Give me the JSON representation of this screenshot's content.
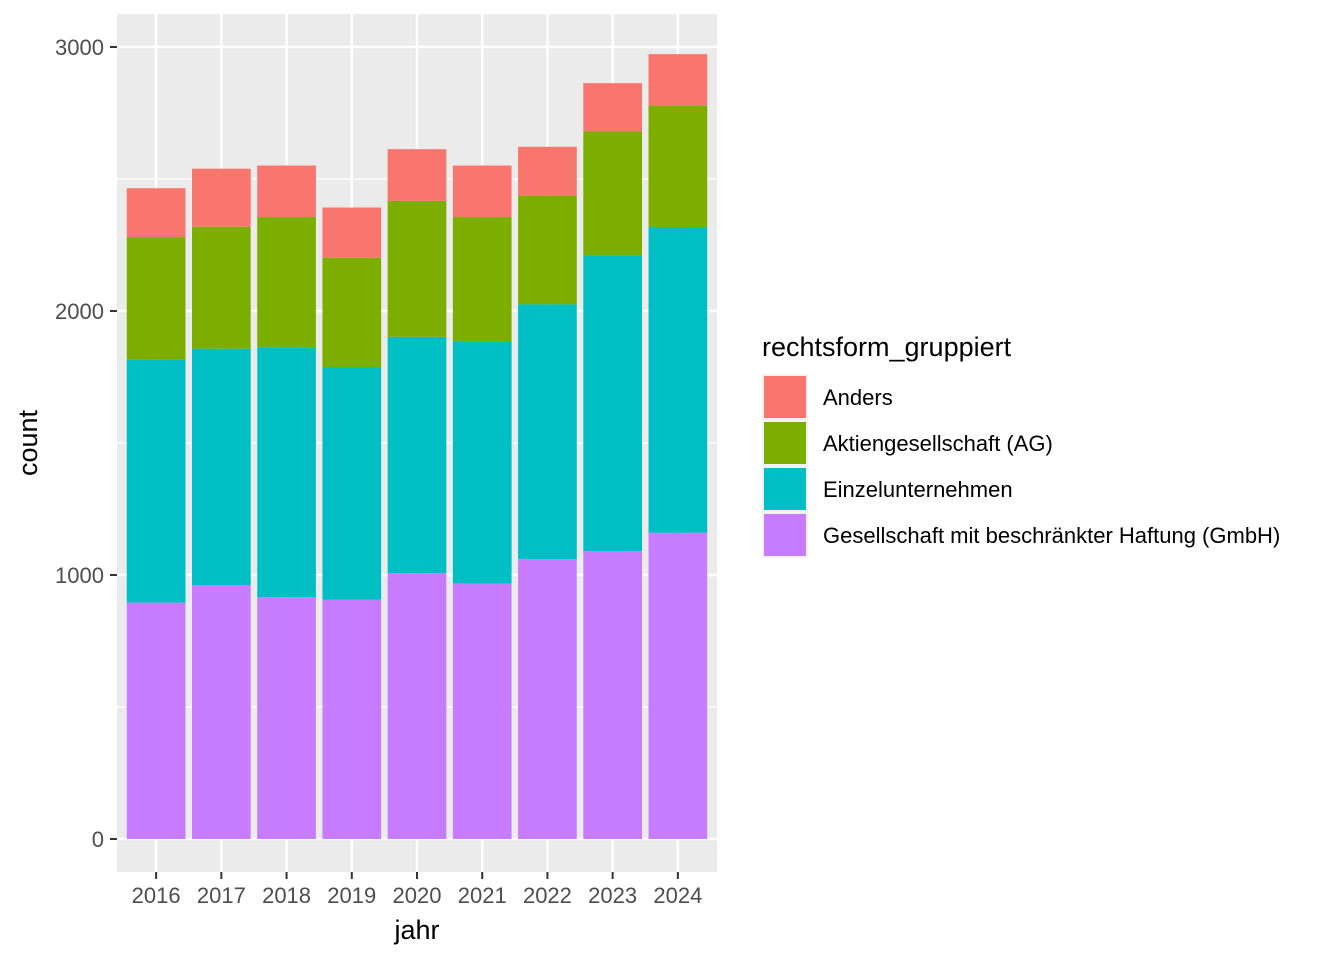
{
  "chart_data": {
    "type": "bar",
    "stacked": true,
    "title": "",
    "xlabel": "jahr",
    "ylabel": "count",
    "categories": [
      "2016",
      "2017",
      "2018",
      "2019",
      "2020",
      "2021",
      "2022",
      "2023",
      "2024"
    ],
    "ylim": [
      -125,
      3125
    ],
    "yticks": [
      0,
      1000,
      2000,
      3000
    ],
    "grid": true,
    "legend": {
      "title": "rechtsform_gruppiert",
      "position": "right"
    },
    "series": [
      {
        "name": "Gesellschaft mit beschränkter Haftung (GmbH)",
        "color": "#C77CFF",
        "values": [
          895,
          962,
          916,
          906,
          1007,
          968,
          1060,
          1090,
          1160
        ]
      },
      {
        "name": "Einzelunternehmen",
        "color": "#00BFC4",
        "values": [
          920,
          895,
          947,
          880,
          895,
          918,
          965,
          1120,
          1158
        ]
      },
      {
        "name": "Aktiengesellschaft (AG)",
        "color": "#7CAE00",
        "values": [
          465,
          462,
          493,
          416,
          515,
          470,
          412,
          470,
          460
        ]
      },
      {
        "name": "Anders",
        "color": "#F8766D",
        "values": [
          185,
          220,
          195,
          190,
          196,
          195,
          185,
          183,
          195
        ]
      }
    ]
  }
}
